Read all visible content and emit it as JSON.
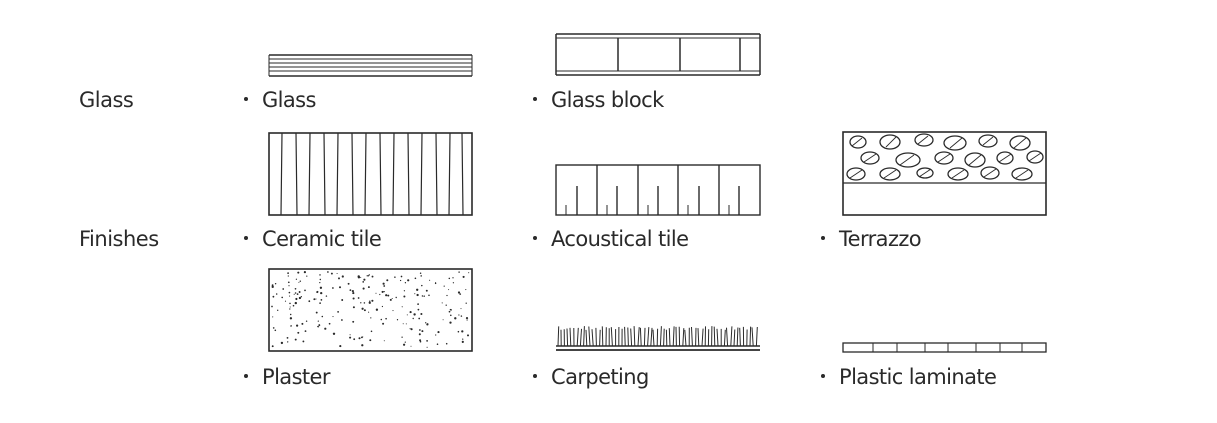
{
  "categories": {
    "glass": "Glass",
    "finishes": "Finishes"
  },
  "items": {
    "glass": "Glass",
    "glass_block": "Glass block",
    "ceramic_tile": "Ceramic tile",
    "acoustical_tile": "Acoustical tile",
    "terrazzo": "Terrazzo",
    "plaster": "Plaster",
    "carpeting": "Carpeting",
    "plastic_laminate": "Plastic laminate"
  }
}
